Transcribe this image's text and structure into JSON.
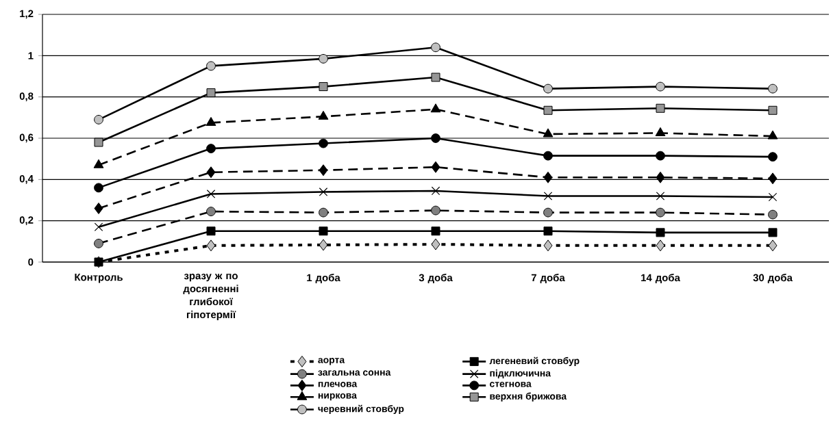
{
  "chart_data": {
    "type": "line",
    "categories": [
      "Контроль",
      "зразу ж по досягненні глибокої гіпотермії",
      "1 доба",
      "3 доба",
      "7 доба",
      "14 доба",
      "30 доба"
    ],
    "ylim": [
      0,
      1.2
    ],
    "yticks": [
      0,
      {
        "value": 0.2,
        "label": "0,2"
      },
      {
        "value": 0.4,
        "label": "0,4"
      },
      {
        "value": 0.6,
        "label": "0,6"
      },
      {
        "value": 0.8,
        "label": "0,8"
      },
      1,
      {
        "value": 1.2,
        "label": "1,2"
      }
    ],
    "grid": "y",
    "legend": "bottom",
    "series": [
      {
        "name": "аорта",
        "color": "#c0c0c0",
        "marker": "diamond",
        "line_style": "dotted",
        "values": [
          0,
          0.08,
          0.083,
          0.086,
          0.08,
          0.08,
          0.08
        ]
      },
      {
        "name": "легеневий стовбур",
        "color": "#000000",
        "marker": "square",
        "line_style": "solid",
        "values": [
          0,
          0.15,
          0.15,
          0.15,
          0.15,
          0.143,
          0.143
        ]
      },
      {
        "name": "загальна сонна",
        "color": "#808080",
        "marker": "circle",
        "line_style": "dashed",
        "values": [
          0.09,
          0.245,
          0.24,
          0.25,
          0.24,
          0.24,
          0.23
        ]
      },
      {
        "name": "підключична",
        "color": "#000000",
        "marker": "cross",
        "line_style": "solid",
        "values": [
          0.17,
          0.33,
          0.34,
          0.345,
          0.32,
          0.32,
          0.315
        ]
      },
      {
        "name": "плечова",
        "color": "#000000",
        "marker": "diamond",
        "line_style": "dashed",
        "values": [
          0.26,
          0.435,
          0.445,
          0.46,
          0.41,
          0.41,
          0.405
        ]
      },
      {
        "name": "стегнова",
        "color": "#000000",
        "marker": "circle",
        "line_style": "solid",
        "values": [
          0.36,
          0.55,
          0.575,
          0.6,
          0.515,
          0.515,
          0.51
        ]
      },
      {
        "name": "ниркова",
        "color": "#000000",
        "marker": "triangle",
        "line_style": "dashed",
        "values": [
          0.47,
          0.675,
          0.705,
          0.74,
          0.62,
          0.625,
          0.61
        ]
      },
      {
        "name": "верхня брижова",
        "color": "#969696",
        "marker": "square",
        "line_style": "solid",
        "values": [
          0.58,
          0.82,
          0.85,
          0.895,
          0.735,
          0.745,
          0.735
        ]
      },
      {
        "name": "черевний стовбур",
        "color": "#c0c0c0",
        "marker": "circle",
        "line_style": "solid",
        "values": [
          0.69,
          0.95,
          0.985,
          1.04,
          0.84,
          0.85,
          0.84
        ]
      }
    ]
  }
}
